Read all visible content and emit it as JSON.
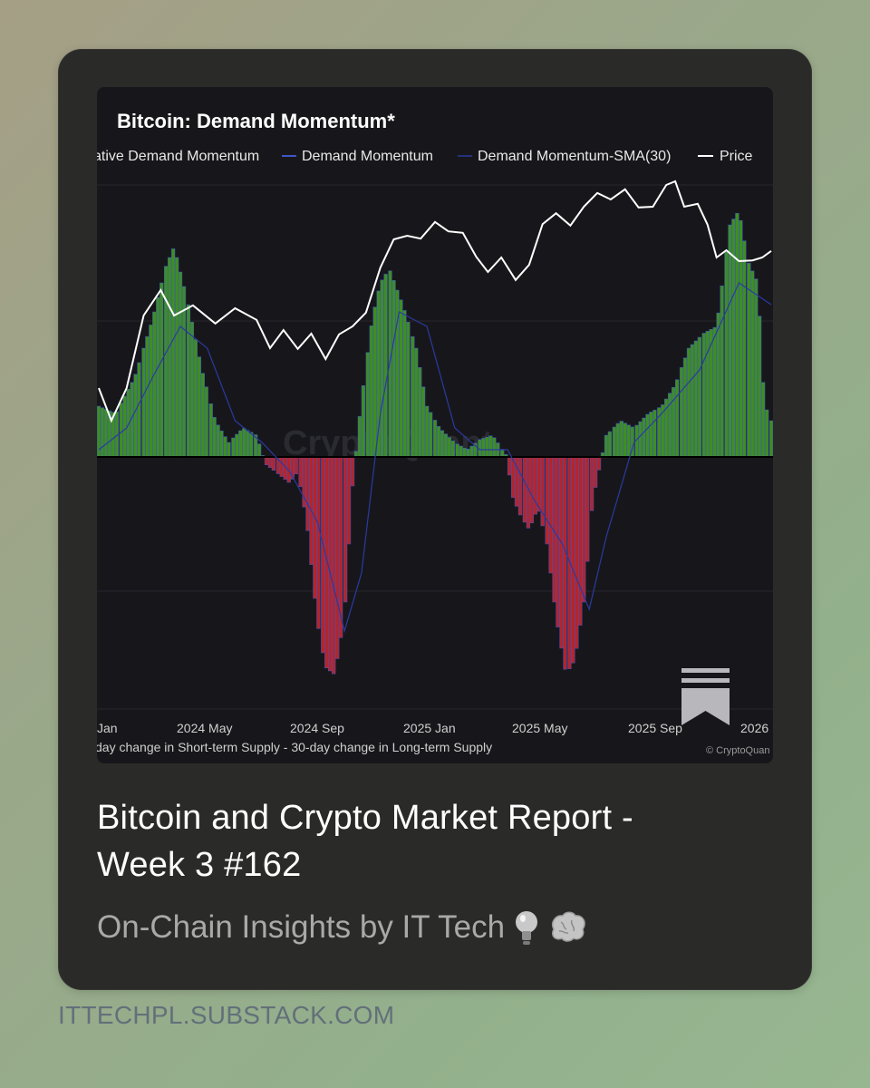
{
  "post": {
    "title_line1": "Bitcoin and Crypto Market Report -",
    "title_line2": "Week 3 #162",
    "subtitle": "On-Chain Insights by IT Tech",
    "subtitle_emojis": [
      "lightbulb-icon",
      "brain-icon"
    ],
    "domain": "ITTECHPL.SUBSTACK.COM"
  },
  "colors": {
    "positive_bar": "#3e8e22",
    "negative_bar": "#b3252b",
    "bar_outline": "#3f55c8",
    "price_line": "#ffffff",
    "sma_line": "#2a3aa0",
    "chart_bg": "#17171b"
  },
  "chart_data": {
    "type": "bar",
    "title": "Bitcoin: Demand Momentum*",
    "legend": [
      "ative Demand Momentum",
      "Demand Momentum",
      "Demand Momentum-SMA(30)",
      "Price"
    ],
    "legend_position": "top",
    "footnote": "day change in Short-term Supply - 30-day change in Long-term Supply",
    "watermark": "CryptoQuant",
    "credit": "© CryptoQuan",
    "x_tick_labels": [
      "Jan",
      "2024 May",
      "2024 Sep",
      "2025 Jan",
      "2025 May",
      "2025 Sep",
      "2026"
    ],
    "x_range": [
      "2024-01-01",
      "2026-01-20"
    ],
    "grid": true,
    "series": [
      {
        "name": "Demand Momentum",
        "style": "bars",
        "points": [
          [
            "2024-01-01",
            0.35
          ],
          [
            "2024-01-20",
            0.3
          ],
          [
            "2024-02-10",
            0.55
          ],
          [
            "2024-03-01",
            0.95
          ],
          [
            "2024-03-15",
            1.3
          ],
          [
            "2024-03-25",
            1.45
          ],
          [
            "2024-04-10",
            1.05
          ],
          [
            "2024-04-25",
            0.6
          ],
          [
            "2024-05-10",
            0.25
          ],
          [
            "2024-05-25",
            0.1
          ],
          [
            "2024-06-10",
            0.2
          ],
          [
            "2024-06-25",
            0.15
          ],
          [
            "2024-07-05",
            -0.05
          ],
          [
            "2024-07-20",
            -0.12
          ],
          [
            "2024-08-01",
            -0.18
          ],
          [
            "2024-08-10",
            -0.1
          ],
          [
            "2024-08-20",
            -0.45
          ],
          [
            "2024-09-01",
            -1.15
          ],
          [
            "2024-09-10",
            -1.45
          ],
          [
            "2024-09-20",
            -1.5
          ],
          [
            "2024-10-01",
            -1.1
          ],
          [
            "2024-10-10",
            -0.2
          ],
          [
            "2024-10-20",
            0.4
          ],
          [
            "2024-11-01",
            0.95
          ],
          [
            "2024-11-10",
            1.2
          ],
          [
            "2024-11-20",
            1.3
          ],
          [
            "2024-12-05",
            1.05
          ],
          [
            "2024-12-20",
            0.75
          ],
          [
            "2025-01-01",
            0.35
          ],
          [
            "2025-01-15",
            0.2
          ],
          [
            "2025-02-01",
            0.1
          ],
          [
            "2025-02-15",
            0.05
          ],
          [
            "2025-03-01",
            0.12
          ],
          [
            "2025-03-15",
            0.15
          ],
          [
            "2025-04-01",
            0.0
          ],
          [
            "2025-04-05",
            -0.25
          ],
          [
            "2025-04-15",
            -0.4
          ],
          [
            "2025-04-25",
            -0.5
          ],
          [
            "2025-05-05",
            -0.35
          ],
          [
            "2025-05-15",
            -0.6
          ],
          [
            "2025-05-25",
            -1.1
          ],
          [
            "2025-06-05",
            -1.5
          ],
          [
            "2025-06-15",
            -1.4
          ],
          [
            "2025-06-25",
            -1.0
          ],
          [
            "2025-07-05",
            -0.3
          ],
          [
            "2025-07-20",
            0.15
          ],
          [
            "2025-08-05",
            0.25
          ],
          [
            "2025-08-20",
            0.2
          ],
          [
            "2025-09-05",
            0.3
          ],
          [
            "2025-09-20",
            0.35
          ],
          [
            "2025-10-05",
            0.5
          ],
          [
            "2025-10-20",
            0.75
          ],
          [
            "2025-11-05",
            0.85
          ],
          [
            "2025-11-20",
            0.9
          ],
          [
            "2025-12-05",
            1.6
          ],
          [
            "2025-12-15",
            1.7
          ],
          [
            "2025-12-25",
            1.35
          ],
          [
            "2026-01-05",
            1.2
          ],
          [
            "2026-01-12",
            0.4
          ],
          [
            "2026-01-18",
            0.25
          ]
        ]
      },
      {
        "name": "Price",
        "style": "line",
        "points": [
          [
            "2024-01-01",
            0.45
          ],
          [
            "2024-01-15",
            0.25
          ],
          [
            "2024-02-01",
            0.5
          ],
          [
            "2024-02-20",
            0.95
          ],
          [
            "2024-03-10",
            1.15
          ],
          [
            "2024-03-25",
            1.0
          ],
          [
            "2024-04-15",
            1.02
          ],
          [
            "2024-05-10",
            0.92
          ],
          [
            "2024-06-01",
            1.05
          ],
          [
            "2024-06-25",
            0.92
          ],
          [
            "2024-07-10",
            0.75
          ],
          [
            "2024-07-25",
            0.9
          ],
          [
            "2024-08-10",
            0.72
          ],
          [
            "2024-08-25",
            0.85
          ],
          [
            "2024-09-10",
            0.7
          ],
          [
            "2024-09-25",
            0.82
          ],
          [
            "2024-10-10",
            0.9
          ],
          [
            "2024-10-25",
            1.02
          ],
          [
            "2024-11-10",
            1.28
          ],
          [
            "2024-11-25",
            1.5
          ],
          [
            "2024-12-10",
            1.55
          ],
          [
            "2024-12-25",
            1.48
          ],
          [
            "2025-01-10",
            1.62
          ],
          [
            "2025-01-25",
            1.58
          ],
          [
            "2025-02-10",
            1.52
          ],
          [
            "2025-02-25",
            1.38
          ],
          [
            "2025-03-10",
            1.3
          ],
          [
            "2025-03-25",
            1.35
          ],
          [
            "2025-04-10",
            1.22
          ],
          [
            "2025-04-25",
            1.35
          ],
          [
            "2025-05-10",
            1.58
          ],
          [
            "2025-05-25",
            1.68
          ],
          [
            "2025-06-10",
            1.62
          ],
          [
            "2025-06-25",
            1.7
          ],
          [
            "2025-07-10",
            1.82
          ],
          [
            "2025-07-25",
            1.8
          ],
          [
            "2025-08-10",
            1.82
          ],
          [
            "2025-08-25",
            1.72
          ],
          [
            "2025-09-10",
            1.75
          ],
          [
            "2025-09-25",
            1.85
          ],
          [
            "2025-10-05",
            1.9
          ],
          [
            "2025-10-15",
            1.75
          ],
          [
            "2025-10-30",
            1.72
          ],
          [
            "2025-11-10",
            1.6
          ],
          [
            "2025-11-20",
            1.4
          ],
          [
            "2025-12-01",
            1.4
          ],
          [
            "2025-12-15",
            1.35
          ],
          [
            "2025-12-30",
            1.38
          ],
          [
            "2026-01-10",
            1.35
          ],
          [
            "2026-01-20",
            1.42
          ]
        ]
      },
      {
        "name": "Demand Momentum-SMA(30)",
        "style": "line",
        "points": [
          [
            "2024-01-01",
            0.05
          ],
          [
            "2024-02-01",
            0.2
          ],
          [
            "2024-03-01",
            0.55
          ],
          [
            "2024-04-01",
            0.9
          ],
          [
            "2024-05-01",
            0.75
          ],
          [
            "2024-06-01",
            0.25
          ],
          [
            "2024-07-01",
            0.1
          ],
          [
            "2024-08-01",
            -0.1
          ],
          [
            "2024-09-01",
            -0.45
          ],
          [
            "2024-10-01",
            -1.2
          ],
          [
            "2024-10-20",
            -0.8
          ],
          [
            "2024-11-10",
            0.3
          ],
          [
            "2024-12-01",
            1.0
          ],
          [
            "2025-01-01",
            0.9
          ],
          [
            "2025-02-01",
            0.2
          ],
          [
            "2025-03-01",
            0.05
          ],
          [
            "2025-04-01",
            0.05
          ],
          [
            "2025-05-01",
            -0.3
          ],
          [
            "2025-06-01",
            -0.6
          ],
          [
            "2025-07-01",
            -1.05
          ],
          [
            "2025-07-20",
            -0.55
          ],
          [
            "2025-08-20",
            0.1
          ],
          [
            "2025-09-20",
            0.3
          ],
          [
            "2025-11-01",
            0.6
          ],
          [
            "2025-12-15",
            1.2
          ],
          [
            "2026-01-20",
            1.05
          ]
        ]
      }
    ]
  }
}
